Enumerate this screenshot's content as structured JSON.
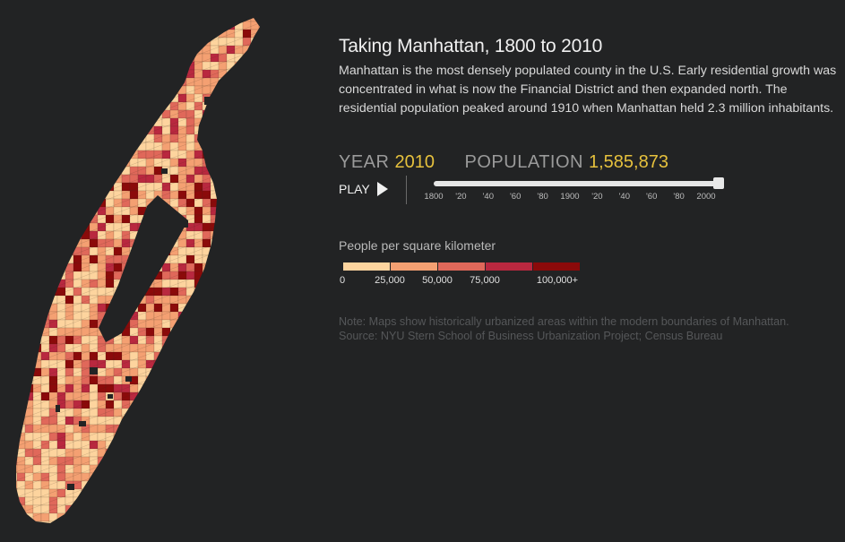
{
  "title": "Taking Manhattan, 1800 to 2010",
  "description": "Manhattan is the most densely populated county in the U.S. Early residential growth was concentrated in what is now the Financial District and then expanded north. The residential population peaked around 1910 when Manhattan held 2.3 million inhabitants.",
  "stats": {
    "year_label": "YEAR",
    "year_value": "2010",
    "population_label": "POPULATION",
    "population_value": "1,585,873"
  },
  "controls": {
    "play_label": "PLAY",
    "timeline_ticks": [
      "1800",
      "'20",
      "'40",
      "'60",
      "'80",
      "1900",
      "'20",
      "'40",
      "'60",
      "'80",
      "2000"
    ],
    "timeline_position": 1.0
  },
  "legend": {
    "title": "People per square kilometer",
    "colors": [
      "#fdd49e",
      "#f4a072",
      "#e0685a",
      "#b9283f",
      "#8b0a0a"
    ],
    "labels": [
      "0",
      "25,000",
      "50,000",
      "75,000",
      "100,000+"
    ]
  },
  "note": {
    "line1": "Note: Maps show historically urbanized areas within the modern boundaries of Manhattan.",
    "line2": "Source: NYU Stern School of Business Urbanization Project; Census Bureau"
  },
  "map_colors": {
    "park": "#222324",
    "outline": "#3a2a1e"
  }
}
